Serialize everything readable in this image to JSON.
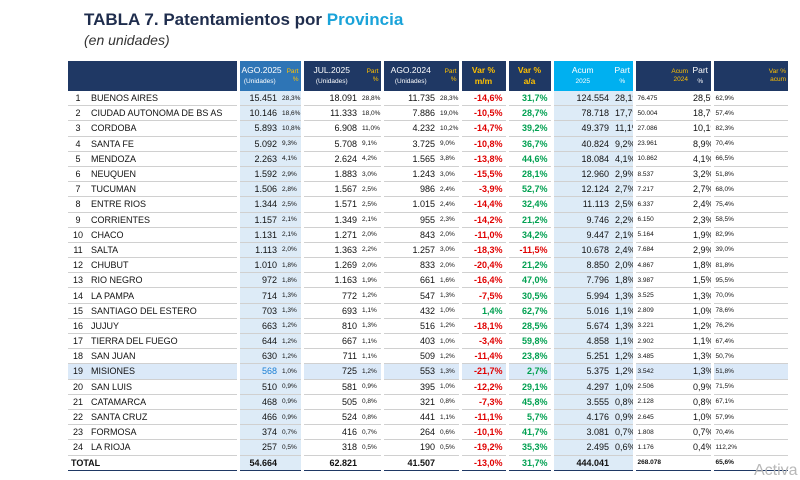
{
  "header": {
    "title": "TABLA 7. Patentamientos por",
    "title_highlight": "Provincia",
    "subtitle": "(en unidades)"
  },
  "table": {
    "headers": [
      {
        "line1": "AGO.2025",
        "line2": "(Unidades)"
      },
      {
        "line1": "Part",
        "line2": "%"
      },
      {
        "line1": "JUL.2025",
        "line2": "(Unidades)"
      },
      {
        "line1": "Part",
        "line2": "%"
      },
      {
        "line1": "AGO.2024",
        "line2": "(Unidades)"
      },
      {
        "line1": "Part",
        "line2": "%"
      },
      {
        "line1": "Var %",
        "line2": "m/m"
      },
      {
        "line1": "Var %",
        "line2": "a/a"
      },
      {
        "line1": "Acum",
        "line2": "2025"
      },
      {
        "line1": "Part",
        "line2": "%"
      },
      {
        "line1": "Acum",
        "line2": "2024"
      },
      {
        "line1": "Part",
        "line2": "%"
      },
      {
        "line1": "Var %",
        "line2": "acum"
      }
    ],
    "rows": [
      [
        1,
        "BUENOS AIRES",
        "15.451",
        "28,3%",
        "18.091",
        "28,8%",
        "11.735",
        "28,3%",
        "-14,6%",
        "31,7%",
        "124.554",
        "28,1%",
        "76.475",
        "28,5%",
        "62,9%"
      ],
      [
        2,
        "CIUDAD AUTONOMA DE BS AS",
        "10.146",
        "18,6%",
        "11.333",
        "18,0%",
        "7.886",
        "19,0%",
        "-10,5%",
        "28,7%",
        "78.718",
        "17,7%",
        "50.004",
        "18,7%",
        "57,4%"
      ],
      [
        3,
        "CORDOBA",
        "5.893",
        "10,8%",
        "6.908",
        "11,0%",
        "4.232",
        "10,2%",
        "-14,7%",
        "39,2%",
        "49.379",
        "11,1%",
        "27.086",
        "10,1%",
        "82,3%"
      ],
      [
        4,
        "SANTA FE",
        "5.092",
        "9,3%",
        "5.708",
        "9,1%",
        "3.725",
        "9,0%",
        "-10,8%",
        "36,7%",
        "40.824",
        "9,2%",
        "23.961",
        "8,9%",
        "70,4%"
      ],
      [
        5,
        "MENDOZA",
        "2.263",
        "4,1%",
        "2.624",
        "4,2%",
        "1.565",
        "3,8%",
        "-13,8%",
        "44,6%",
        "18.084",
        "4,1%",
        "10.862",
        "4,1%",
        "66,5%"
      ],
      [
        6,
        "NEUQUEN",
        "1.592",
        "2,9%",
        "1.883",
        "3,0%",
        "1.243",
        "3,0%",
        "-15,5%",
        "28,1%",
        "12.960",
        "2,9%",
        "8.537",
        "3,2%",
        "51,8%"
      ],
      [
        7,
        "TUCUMAN",
        "1.506",
        "2,8%",
        "1.567",
        "2,5%",
        "986",
        "2,4%",
        "-3,9%",
        "52,7%",
        "12.124",
        "2,7%",
        "7.217",
        "2,7%",
        "68,0%"
      ],
      [
        8,
        "ENTRE RIOS",
        "1.344",
        "2,5%",
        "1.571",
        "2,5%",
        "1.015",
        "2,4%",
        "-14,4%",
        "32,4%",
        "11.113",
        "2,5%",
        "6.337",
        "2,4%",
        "75,4%"
      ],
      [
        9,
        "CORRIENTES",
        "1.157",
        "2,1%",
        "1.349",
        "2,1%",
        "955",
        "2,3%",
        "-14,2%",
        "21,2%",
        "9.746",
        "2,2%",
        "6.150",
        "2,3%",
        "58,5%"
      ],
      [
        10,
        "CHACO",
        "1.131",
        "2,1%",
        "1.271",
        "2,0%",
        "843",
        "2,0%",
        "-11,0%",
        "34,2%",
        "9.447",
        "2,1%",
        "5.164",
        "1,9%",
        "82,9%"
      ],
      [
        11,
        "SALTA",
        "1.113",
        "2,0%",
        "1.363",
        "2,2%",
        "1.257",
        "3,0%",
        "-18,3%",
        "-11,5%",
        "10.678",
        "2,4%",
        "7.684",
        "2,9%",
        "39,0%"
      ],
      [
        12,
        "CHUBUT",
        "1.010",
        "1,8%",
        "1.269",
        "2,0%",
        "833",
        "2,0%",
        "-20,4%",
        "21,2%",
        "8.850",
        "2,0%",
        "4.867",
        "1,8%",
        "81,8%"
      ],
      [
        13,
        "RIO NEGRO",
        "972",
        "1,8%",
        "1.163",
        "1,9%",
        "661",
        "1,6%",
        "-16,4%",
        "47,0%",
        "7.796",
        "1,8%",
        "3.987",
        "1,5%",
        "95,5%"
      ],
      [
        14,
        "LA PAMPA",
        "714",
        "1,3%",
        "772",
        "1,2%",
        "547",
        "1,3%",
        "-7,5%",
        "30,5%",
        "5.994",
        "1,3%",
        "3.525",
        "1,3%",
        "70,0%"
      ],
      [
        15,
        "SANTIAGO DEL ESTERO",
        "703",
        "1,3%",
        "693",
        "1,1%",
        "432",
        "1,0%",
        "1,4%",
        "62,7%",
        "5.016",
        "1,1%",
        "2.809",
        "1,0%",
        "78,6%"
      ],
      [
        16,
        "JUJUY",
        "663",
        "1,2%",
        "810",
        "1,3%",
        "516",
        "1,2%",
        "-18,1%",
        "28,5%",
        "5.674",
        "1,3%",
        "3.221",
        "1,2%",
        "76,2%"
      ],
      [
        17,
        "TIERRA DEL FUEGO",
        "644",
        "1,2%",
        "667",
        "1,1%",
        "403",
        "1,0%",
        "-3,4%",
        "59,8%",
        "4.858",
        "1,1%",
        "2.902",
        "1,1%",
        "67,4%"
      ],
      [
        18,
        "SAN JUAN",
        "630",
        "1,2%",
        "711",
        "1,1%",
        "509",
        "1,2%",
        "-11,4%",
        "23,8%",
        "5.251",
        "1,2%",
        "3.485",
        "1,3%",
        "50,7%"
      ],
      [
        19,
        "MISIONES",
        "568",
        "1,0%",
        "725",
        "1,2%",
        "553",
        "1,3%",
        "-21,7%",
        "2,7%",
        "5.375",
        "1,2%",
        "3.542",
        "1,3%",
        "51,8%"
      ],
      [
        20,
        "SAN LUIS",
        "510",
        "0,9%",
        "581",
        "0,9%",
        "395",
        "1,0%",
        "-12,2%",
        "29,1%",
        "4.297",
        "1,0%",
        "2.506",
        "0,9%",
        "71,5%"
      ],
      [
        21,
        "CATAMARCA",
        "468",
        "0,9%",
        "505",
        "0,8%",
        "321",
        "0,8%",
        "-7,3%",
        "45,8%",
        "3.555",
        "0,8%",
        "2.128",
        "0,8%",
        "67,1%"
      ],
      [
        22,
        "SANTA CRUZ",
        "466",
        "0,9%",
        "524",
        "0,8%",
        "441",
        "1,1%",
        "-11,1%",
        "5,7%",
        "4.176",
        "0,9%",
        "2.645",
        "1,0%",
        "57,9%"
      ],
      [
        23,
        "FORMOSA",
        "374",
        "0,7%",
        "416",
        "0,7%",
        "264",
        "0,6%",
        "-10,1%",
        "41,7%",
        "3.081",
        "0,7%",
        "1.808",
        "0,7%",
        "70,4%"
      ],
      [
        24,
        "LA RIOJA",
        "257",
        "0,5%",
        "318",
        "0,5%",
        "190",
        "0,5%",
        "-19,2%",
        "35,3%",
        "2.495",
        "0,6%",
        "1.176",
        "0,4%",
        "112,2%"
      ]
    ],
    "total": [
      "TOTAL",
      "54.664",
      null,
      "62.821",
      null,
      "41.507",
      null,
      "-13,0%",
      "31,7%",
      "444.041",
      null,
      "268.078",
      null,
      "65,6%"
    ]
  },
  "watermark": "Activa"
}
